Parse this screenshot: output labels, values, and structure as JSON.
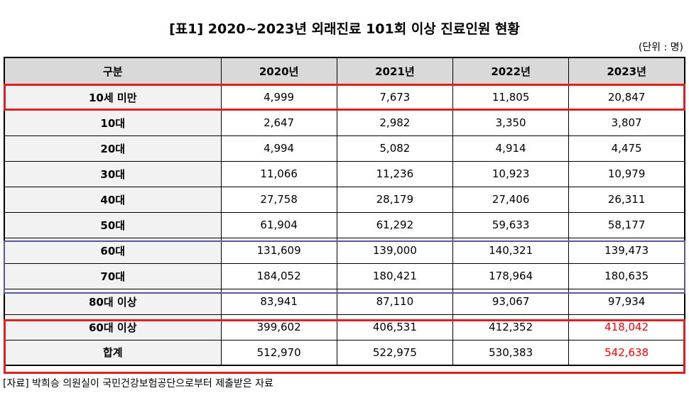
{
  "title": "[표1] 2020~2023년 외래진료 101회 이상 진료인원 현황",
  "unit": "(단위 : 명)",
  "table": {
    "header": [
      "구분",
      "2020년",
      "2021년",
      "2022년",
      "2023년"
    ],
    "rows": [
      [
        "10세 미만",
        "4,999",
        "7,673",
        "11,805",
        "20,847"
      ],
      [
        "10대",
        "2,647",
        "2,982",
        "3,350",
        "3,807"
      ],
      [
        "20대",
        "4,994",
        "5,082",
        "4,914",
        "4,475"
      ],
      [
        "30대",
        "11,066",
        "11,236",
        "10,923",
        "10,979"
      ],
      [
        "40대",
        "27,758",
        "28,179",
        "27,406",
        "26,311"
      ],
      [
        "50대",
        "61,904",
        "61,292",
        "59,633",
        "58,177"
      ],
      [
        "60대",
        "131,609",
        "139,000",
        "140,321",
        "139,473"
      ],
      [
        "70대",
        "184,052",
        "180,421",
        "178,964",
        "180,635"
      ],
      [
        "80대 이상",
        "83,941",
        "87,110",
        "93,067",
        "97,934"
      ],
      [
        "60대 이상",
        "399,602",
        "406,531",
        "412,352",
        "418,042"
      ],
      [
        "합계",
        "512,970",
        "522,975",
        "530,383",
        "542,638"
      ]
    ]
  },
  "source": "[자료] 박희승 의원실이 국민건강보험공단으로부터 제출받은 자료"
}
